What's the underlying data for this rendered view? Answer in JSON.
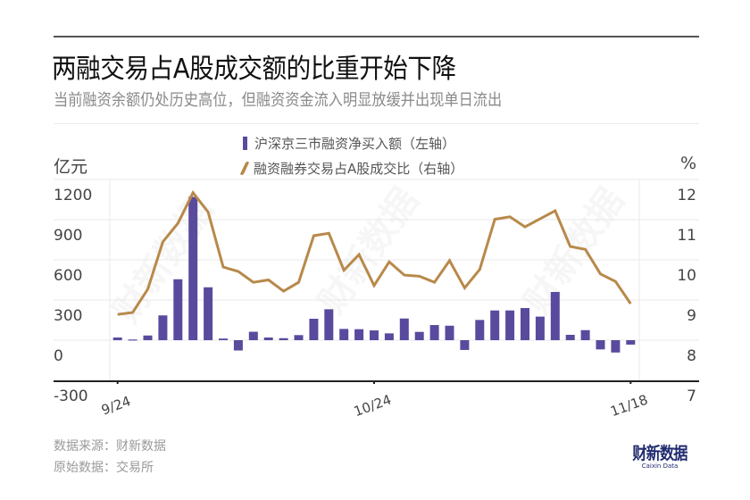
{
  "header": {
    "title": "两融交易占A股成交额的比重开始下降",
    "subtitle": "当前融资余额仍处历史高位，但融资资金流入明显放缓并出现单日流出"
  },
  "legend": {
    "bar_label": "沪深京三市融资净买入额（左轴）",
    "line_label": "融资融券交易占A股成交比（右轴）"
  },
  "axes": {
    "left_unit": "亿元",
    "right_unit": "%",
    "left_ticks": [
      "1200",
      "900",
      "600",
      "300",
      "0",
      "-300"
    ],
    "right_ticks": [
      "12",
      "11",
      "10",
      "9",
      "8",
      "7"
    ],
    "x_ticks": [
      "9/24",
      "10/24",
      "11/18"
    ]
  },
  "footer": {
    "source": "数据来源：财新数据",
    "origin": "原始数据：交易所"
  },
  "logo": {
    "cn": "财新数据",
    "en": "Caixin Data"
  },
  "colors": {
    "bar": "#5a4a9e",
    "line": "#b8894a",
    "grid": "#e8e8e8",
    "axis": "#222222"
  },
  "chart_data": {
    "type": "bar+line",
    "title": "两融交易占A股成交额的比重开始下降",
    "subtitle": "当前融资余额仍处历史高位，但融资资金流入明显放缓并出现单日流出",
    "xlabel": "",
    "x_tick_labels": [
      {
        "index": 0,
        "label": "9/24"
      },
      {
        "index": 17,
        "label": "10/24"
      },
      {
        "index": 34,
        "label": "11/18"
      }
    ],
    "left_axis": {
      "label": "亿元",
      "ylim": [
        -300,
        1200
      ],
      "ticks": [
        -300,
        0,
        300,
        600,
        900,
        1200
      ]
    },
    "right_axis": {
      "label": "%",
      "ylim": [
        7,
        12
      ],
      "ticks": [
        7,
        8,
        9,
        10,
        11,
        12
      ]
    },
    "grid": true,
    "legend_position": "top",
    "series": [
      {
        "name": "沪深京三市融资净买入额（左轴）",
        "type": "bar",
        "axis": "left",
        "values": [
          20,
          5,
          35,
          185,
          455,
          1070,
          395,
          12,
          -77,
          63,
          20,
          15,
          38,
          160,
          231,
          84,
          82,
          73,
          51,
          162,
          62,
          113,
          108,
          -73,
          151,
          222,
          222,
          240,
          176,
          360,
          40,
          75,
          -69,
          -92,
          -33
        ]
      },
      {
        "name": "融资融券交易占A股成交比（右轴）",
        "type": "line",
        "axis": "right",
        "values": [
          8.64,
          8.69,
          9.27,
          10.45,
          10.91,
          11.67,
          11.19,
          9.82,
          9.71,
          9.44,
          9.5,
          9.22,
          9.44,
          10.6,
          10.66,
          9.74,
          10.13,
          9.36,
          9.95,
          9.62,
          9.59,
          9.44,
          9.98,
          9.3,
          9.76,
          11.01,
          11.07,
          10.82,
          11.02,
          11.22,
          10.33,
          10.26,
          9.65,
          9.46,
          8.91
        ]
      }
    ]
  }
}
